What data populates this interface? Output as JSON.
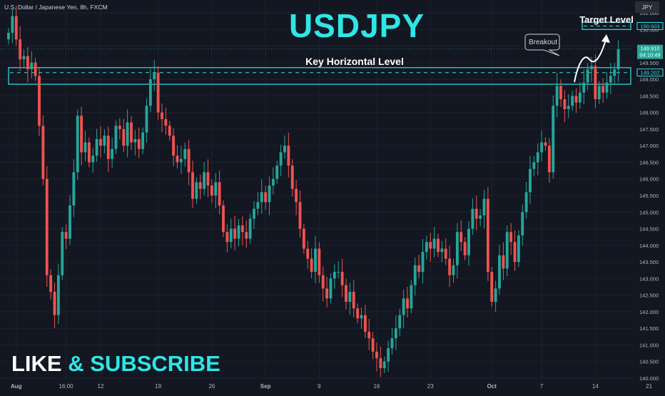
{
  "header": {
    "symbol_info": "U.S. Dollar / Japanese Yen, 8h, FXCM",
    "big_title": "USDJPY",
    "currency_badge": "JPY"
  },
  "overlay": {
    "key_level_label": "Key Horizontal Level",
    "target_label": "Target Level",
    "breakout_label": "Breakout",
    "cta_part1": "LIKE",
    "cta_amp": "&",
    "cta_part2": "SUBSCRIBE"
  },
  "price_tags": {
    "target": "150.603",
    "current": "149.910",
    "countdown": "04:10:49",
    "level": "149.202"
  },
  "colors": {
    "up": "#26a69a",
    "down": "#ef5350",
    "accent_cyan": "#2ee6e6",
    "background": "#131722",
    "grid": "#1e222d"
  },
  "chart_data": {
    "type": "candlestick",
    "ylim": [
      140.0,
      151.0
    ],
    "y_ticks": [
      "151.000",
      "150.500",
      "150.000",
      "149.500",
      "149.000",
      "148.500",
      "148.000",
      "147.500",
      "147.000",
      "146.500",
      "146.000",
      "145.500",
      "145.000",
      "144.500",
      "144.000",
      "143.500",
      "143.000",
      "142.500",
      "142.000",
      "141.500",
      "141.000",
      "140.500",
      "140.000"
    ],
    "y_tick_values": [
      151.0,
      150.5,
      150.0,
      149.5,
      149.0,
      148.5,
      148.0,
      147.5,
      147.0,
      146.5,
      146.0,
      145.5,
      145.0,
      144.5,
      144.0,
      143.5,
      143.0,
      142.5,
      142.0,
      141.5,
      141.0,
      140.5,
      140.0
    ],
    "x_tick_labels": [
      "Aug",
      "16:00",
      "12",
      "19",
      "26",
      "Sep",
      "9",
      "16",
      "23",
      "Oct",
      "7",
      "14",
      "21"
    ],
    "x_tick_index": [
      2,
      15,
      24,
      39,
      53,
      67,
      81,
      96,
      110,
      126,
      139,
      153,
      167
    ],
    "bold_x_labels": [
      "Aug",
      "Sep",
      "Oct"
    ],
    "key_level_zone": [
      148.85,
      149.35
    ],
    "key_level_price": 149.202,
    "target_zone": [
      150.5,
      150.72
    ],
    "target_price": 150.603,
    "last_price": 149.91,
    "candles_close": [
      150.4,
      150.9,
      150.2,
      149.6,
      149.7,
      149.3,
      149.5,
      149.1,
      147.6,
      146.0,
      143.1,
      142.6,
      141.9,
      143.1,
      144.4,
      144.2,
      145.2,
      146.2,
      147.9,
      146.8,
      147.1,
      146.5,
      146.7,
      147.2,
      147.0,
      147.3,
      146.6,
      146.9,
      147.6,
      147.5,
      147.0,
      147.7,
      147.1,
      147.2,
      146.9,
      147.4,
      148.2,
      149.0,
      149.2,
      148.0,
      147.8,
      147.6,
      147.3,
      146.7,
      146.5,
      146.6,
      146.9,
      146.2,
      145.4,
      145.9,
      145.7,
      146.2,
      145.8,
      145.5,
      145.9,
      145.2,
      144.4,
      144.1,
      144.5,
      144.2,
      144.6,
      144.4,
      144.2,
      144.8,
      145.1,
      145.3,
      145.6,
      145.3,
      145.8,
      146.0,
      146.4,
      146.8,
      147.0,
      146.4,
      145.7,
      145.3,
      144.5,
      143.9,
      143.6,
      143.2,
      143.9,
      143.1,
      142.7,
      142.4,
      143.0,
      143.2,
      143.2,
      142.8,
      142.3,
      142.6,
      142.1,
      141.8,
      141.9,
      141.4,
      141.2,
      140.8,
      140.6,
      140.3,
      140.5,
      140.9,
      141.2,
      141.5,
      141.9,
      142.4,
      142.1,
      142.8,
      143.4,
      143.2,
      143.8,
      144.1,
      143.9,
      144.2,
      143.8,
      143.9,
      143.6,
      143.1,
      143.4,
      144.4,
      144.1,
      143.7,
      144.5,
      145.1,
      144.8,
      144.9,
      145.4,
      143.2,
      142.3,
      142.7,
      143.7,
      143.3,
      144.4,
      144.1,
      143.5,
      144.3,
      145.0,
      145.6,
      146.3,
      146.5,
      146.8,
      147.1,
      147.0,
      146.2,
      148.2,
      148.8,
      148.4,
      148.1,
      148.2,
      148.5,
      148.3,
      148.6,
      148.9,
      149.3,
      149.4,
      148.4,
      148.8,
      148.6,
      148.9,
      149.1,
      149.3,
      149.9
    ]
  }
}
